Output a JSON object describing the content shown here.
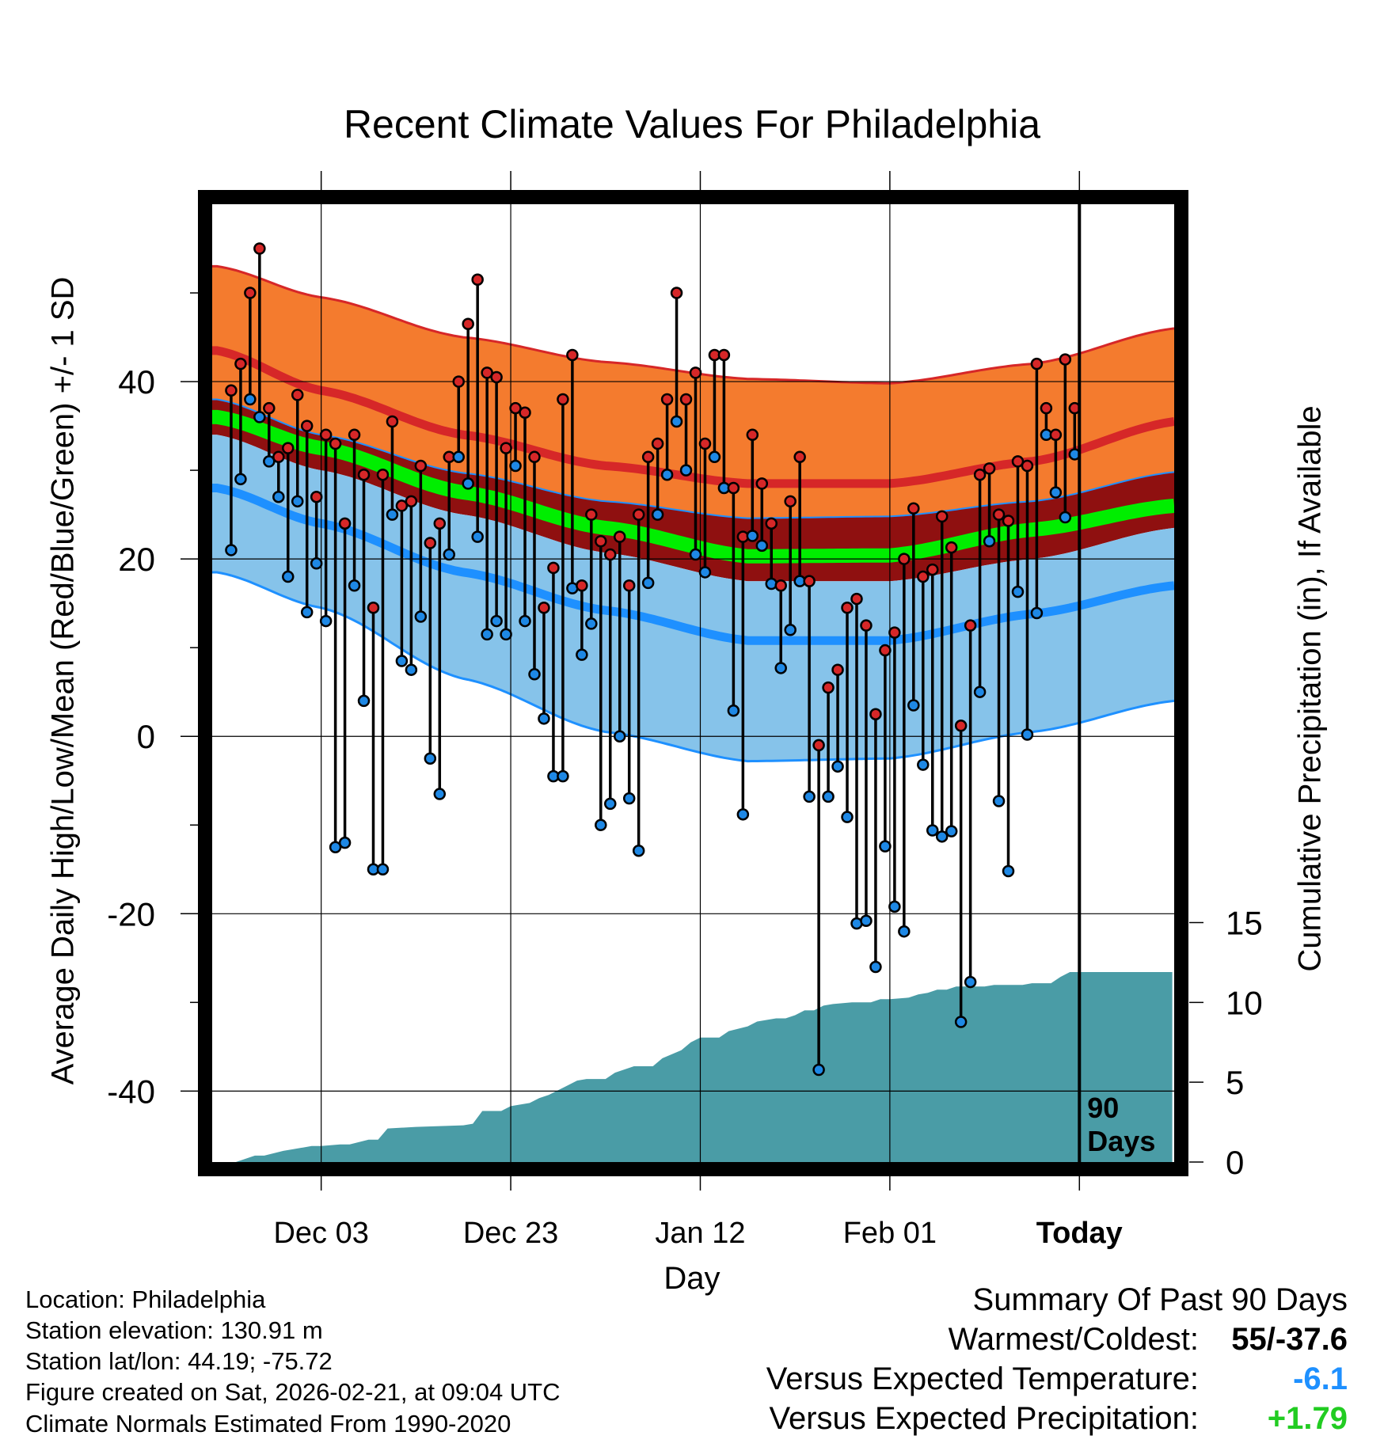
{
  "title": "Recent Climate Values For Philadelphia",
  "y_axis_left_label": "Average Daily High/Low/Mean (Red/Blue/Green) +/- 1 SD",
  "y_axis_right_label": "Cumulative Precipitation (in), If Available",
  "x_axis_label": "Day",
  "window_label_line1": "90",
  "window_label_line2": "Days",
  "info": {
    "location": "Location: Philadelphia",
    "elevation": "Station elevation: 130.91 m",
    "latlon": "Station lat/lon: 44.19; -75.72",
    "created": "Figure created on Sat, 2026-02-21, at 09:04 UTC",
    "normals": "Climate Normals Estimated From 1990-2020"
  },
  "summary": {
    "title": "Summary Of Past 90 Days",
    "warmest_coldest_label": "Warmest/Coldest:",
    "warmest_coldest_value": "55/-37.6",
    "temp_label": "Versus Expected Temperature:",
    "temp_value": "-6.1",
    "precip_label": "Versus Expected Precipitation:",
    "precip_value": "+1.79"
  },
  "colors": {
    "high_band": "#f47b2e",
    "high_line": "#d62728",
    "low_band": "#86c3ea",
    "low_line": "#1e90ff",
    "mean_band": "#00ee00",
    "mean_outer": "#8f1010",
    "precip_fill": "#4a9ca6",
    "high_dot": "#d62728",
    "low_dot": "#1e88e5",
    "temp_value": "#1e90ff",
    "precip_value": "#22cc22"
  },
  "chart_data": {
    "type": "line",
    "x_range": [
      -11.5,
      90
    ],
    "y_range_left": [
      -48,
      60
    ],
    "y_range_right": [
      0,
      60
    ],
    "x_ticks": [
      {
        "day": 0,
        "label": "Dec 03"
      },
      {
        "day": 20,
        "label": "Dec 23"
      },
      {
        "day": 40,
        "label": "Jan 12"
      },
      {
        "day": 60,
        "label": "Feb 01"
      },
      {
        "day": 80,
        "label": "Today"
      }
    ],
    "y_ticks_left": [
      -40,
      -20,
      0,
      20,
      40
    ],
    "y_ticks_right": [
      0,
      5,
      10,
      15
    ],
    "today_day": 80,
    "normals_days": [
      -11,
      0,
      15,
      30,
      45,
      60,
      75,
      90
    ],
    "normal_high_upper": [
      53,
      49.5,
      45,
      42.2,
      40.3,
      39.8,
      42,
      46
    ],
    "normal_high_mean": [
      43.5,
      39,
      34,
      30.5,
      28.5,
      28.5,
      31,
      35.5
    ],
    "normal_mean_upper": [
      38,
      34,
      29.7,
      26.5,
      24.6,
      24.8,
      26.5,
      29.8
    ],
    "normal_mean_line": [
      36,
      32.5,
      27.5,
      23.5,
      20.3,
      20.4,
      23.3,
      26
    ],
    "normal_mean_lower": [
      34,
      30,
      25,
      20.7,
      17.5,
      17.5,
      20,
      23.5
    ],
    "normal_low_mean": [
      28,
      24,
      18.5,
      14.2,
      10.8,
      10.8,
      13.8,
      17
    ],
    "normal_low_lower": [
      18.5,
      14.5,
      6.5,
      0.5,
      -2.8,
      -2.5,
      0.5,
      4
    ],
    "daily_high": [
      39,
      42,
      50,
      55,
      37,
      31.5,
      32.5,
      38.5,
      35,
      27,
      34,
      33,
      24,
      34,
      29.5,
      14.5,
      29.5,
      35.5,
      26,
      26.5,
      30.5,
      21.8,
      24,
      31.5,
      40,
      46.5,
      51.5,
      41,
      40.5,
      32.5,
      37,
      36.5,
      31.5,
      14.5,
      19,
      38,
      43,
      17,
      25,
      22,
      20.5,
      22.5,
      17,
      25,
      31.5,
      33,
      38,
      50,
      38,
      41,
      33,
      43,
      43,
      28,
      22.5,
      34,
      28.5,
      24,
      17,
      26.5,
      31.5,
      17.5,
      -1,
      5.5,
      7.5,
      14.5,
      15.5,
      12.5,
      2.5,
      9.7,
      11.7,
      20,
      25.7,
      18,
      18.8,
      24.8,
      21.3,
      1.2,
      12.5,
      29.5,
      30.2,
      25,
      24.3,
      31,
      30.5,
      42,
      37,
      34,
      42.5,
      37
    ],
    "daily_low": [
      21,
      29,
      38,
      36,
      31,
      27,
      18,
      26.5,
      14,
      19.5,
      13,
      -12.5,
      -12,
      17,
      4,
      -15,
      -15,
      25,
      8.5,
      7.5,
      13.5,
      -2.5,
      -6.5,
      20.5,
      31.5,
      28.5,
      22.5,
      11.5,
      13,
      11.5,
      30.5,
      13,
      7,
      2,
      -4.5,
      -4.5,
      16.7,
      9.2,
      12.7,
      -10,
      -7.6,
      0,
      -7,
      -12.9,
      17.3,
      25,
      29.5,
      35.5,
      30,
      20.5,
      18.5,
      31.5,
      28,
      2.9,
      -8.8,
      22.6,
      21.5,
      17.2,
      7.7,
      12,
      17.5,
      -6.8,
      -37.6,
      -6.8,
      -3.4,
      -9.1,
      -21.1,
      -20.8,
      -26,
      -12.4,
      -19.2,
      -22,
      3.5,
      -3.2,
      -10.6,
      -11.3,
      -10.7,
      -32.2,
      -27.7,
      5,
      22,
      -7.3,
      -15.2,
      16.3,
      0.2,
      13.9,
      34,
      27.5,
      24.7,
      31.8
    ],
    "precip_days": [
      -11.2,
      -9,
      -7,
      -6,
      -4,
      -3,
      -1,
      0,
      2,
      3,
      5,
      6,
      7,
      10,
      15,
      16,
      17,
      19,
      20,
      22,
      23,
      24,
      26,
      27,
      28,
      30,
      31,
      33,
      35,
      36,
      38,
      39,
      40,
      42,
      43,
      45,
      46,
      48,
      49,
      50,
      51,
      52,
      53,
      54,
      56,
      57,
      58,
      59,
      60,
      62,
      63,
      64,
      65,
      66,
      67,
      68,
      70,
      71,
      72,
      73,
      74,
      75,
      76,
      77,
      78,
      79,
      89.8
    ],
    "precip_values": [
      0,
      0,
      0.4,
      0.4,
      0.7,
      0.8,
      1,
      1,
      1.1,
      1.1,
      1.4,
      1.4,
      2.1,
      2.2,
      2.3,
      2.4,
      3.2,
      3.2,
      3.5,
      3.7,
      4,
      4.2,
      4.8,
      5.1,
      5.2,
      5.2,
      5.6,
      6,
      6,
      6.5,
      7,
      7.5,
      7.8,
      7.8,
      8.2,
      8.5,
      8.8,
      9,
      9,
      9.2,
      9.5,
      9.5,
      9.8,
      9.9,
      10,
      10,
      10,
      10.2,
      10.2,
      10.3,
      10.5,
      10.6,
      10.8,
      10.8,
      11,
      11,
      11,
      11.1,
      11.1,
      11.1,
      11.1,
      11.2,
      11.2,
      11.2,
      11.6,
      11.9,
      11.9
    ]
  }
}
